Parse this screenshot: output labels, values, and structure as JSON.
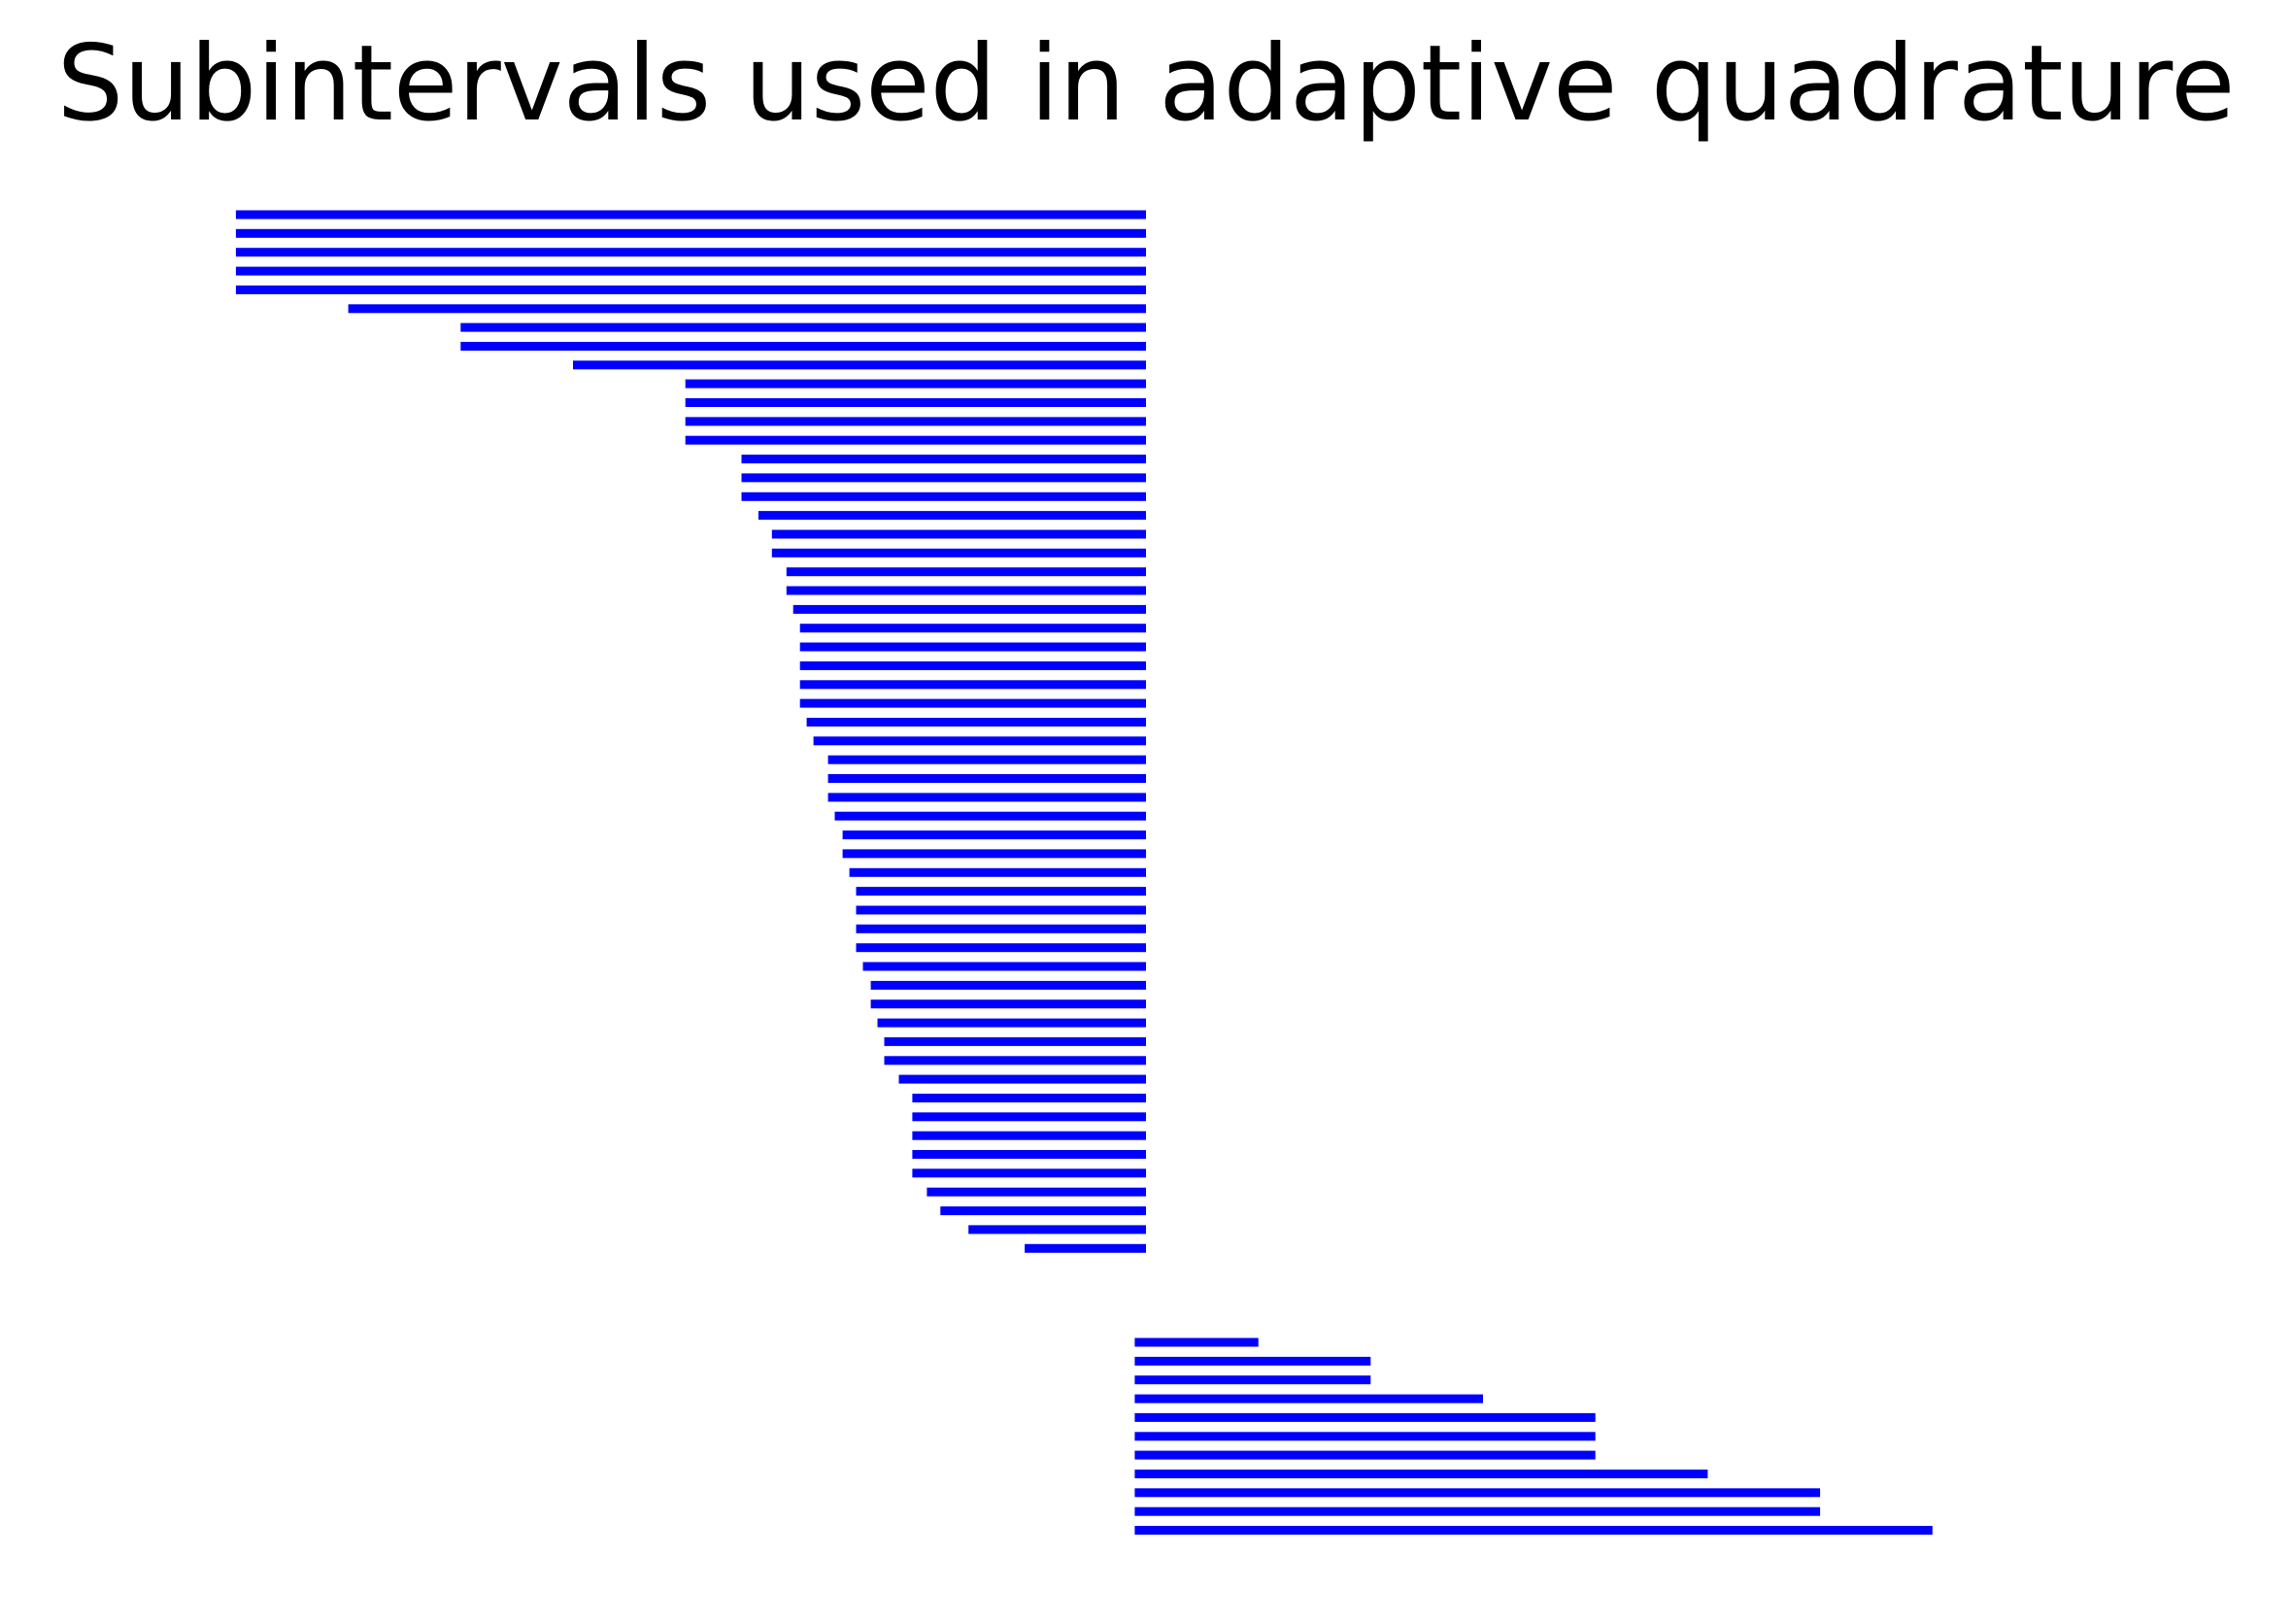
{
  "chart_data": {
    "type": "bar",
    "title": "Subintervals used in adaptive quadrature",
    "xlabel": "",
    "ylabel": "",
    "axes_visible": false,
    "grid": false,
    "bar_color": "#0000ff",
    "xlim": [
      -1.02,
      1.02
    ],
    "intervals": [
      [
        -0.81,
        0.0
      ],
      [
        -0.81,
        0.0
      ],
      [
        -0.81,
        0.0
      ],
      [
        -0.81,
        0.0
      ],
      [
        -0.81,
        0.0
      ],
      [
        -0.71,
        0.0
      ],
      [
        -0.61,
        0.0
      ],
      [
        -0.61,
        0.0
      ],
      [
        -0.51,
        0.0
      ],
      [
        -0.41,
        0.0
      ],
      [
        -0.41,
        0.0
      ],
      [
        -0.41,
        0.0
      ],
      [
        -0.41,
        0.0
      ],
      [
        -0.36,
        0.0
      ],
      [
        -0.36,
        0.0
      ],
      [
        -0.36,
        0.0
      ],
      [
        -0.345,
        0.0
      ],
      [
        -0.333,
        0.0
      ],
      [
        -0.333,
        0.0
      ],
      [
        -0.32,
        0.0
      ],
      [
        -0.32,
        0.0
      ],
      [
        -0.314,
        0.0
      ],
      [
        -0.308,
        0.0
      ],
      [
        -0.308,
        0.0
      ],
      [
        -0.308,
        0.0
      ],
      [
        -0.308,
        0.0
      ],
      [
        -0.308,
        0.0
      ],
      [
        -0.302,
        0.0
      ],
      [
        -0.296,
        0.0
      ],
      [
        -0.283,
        0.0
      ],
      [
        -0.283,
        0.0
      ],
      [
        -0.283,
        0.0
      ],
      [
        -0.277,
        0.0
      ],
      [
        -0.27,
        0.0
      ],
      [
        -0.27,
        0.0
      ],
      [
        -0.264,
        0.0
      ],
      [
        -0.258,
        0.0
      ],
      [
        -0.258,
        0.0
      ],
      [
        -0.258,
        0.0
      ],
      [
        -0.258,
        0.0
      ],
      [
        -0.252,
        0.0
      ],
      [
        -0.245,
        0.0
      ],
      [
        -0.245,
        0.0
      ],
      [
        -0.239,
        0.0
      ],
      [
        -0.233,
        0.0
      ],
      [
        -0.233,
        0.0
      ],
      [
        -0.22,
        0.0
      ],
      [
        -0.208,
        0.0
      ],
      [
        -0.208,
        0.0
      ],
      [
        -0.208,
        0.0
      ],
      [
        -0.208,
        0.0
      ],
      [
        -0.208,
        0.0
      ],
      [
        -0.195,
        0.0
      ],
      [
        -0.183,
        0.0
      ],
      [
        -0.158,
        0.0
      ],
      [
        -0.108,
        0.0
      ],
      null,
      null,
      null,
      null,
      [
        -0.01,
        0.1
      ],
      [
        -0.01,
        0.2
      ],
      [
        -0.01,
        0.2
      ],
      [
        -0.01,
        0.3
      ],
      [
        -0.01,
        0.4
      ],
      [
        -0.01,
        0.4
      ],
      [
        -0.01,
        0.4
      ],
      [
        -0.01,
        0.5
      ],
      [
        -0.01,
        0.6
      ],
      [
        -0.01,
        0.6
      ],
      [
        -0.01,
        0.7
      ]
    ]
  }
}
